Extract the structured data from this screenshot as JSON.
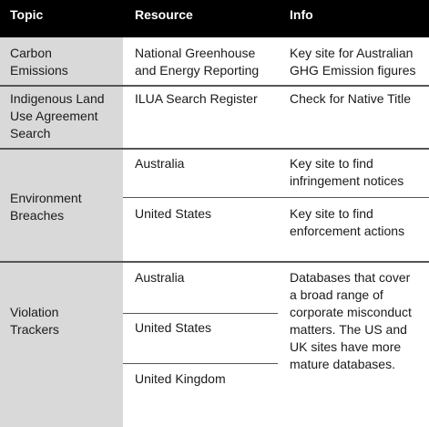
{
  "header": {
    "topic": "Topic",
    "resource": "Resource",
    "info": "Info"
  },
  "rows": {
    "carbon": {
      "topic": [
        "Carbon",
        "Emissions"
      ],
      "resource": [
        "National Greenhouse",
        "and Energy Reporting"
      ],
      "info": [
        "Key site for Australian",
        "GHG Emission figures"
      ]
    },
    "ilua": {
      "topic": [
        "Indigenous Land",
        "Use Agreement",
        "Search"
      ],
      "resource": [
        "ILUA Search Register"
      ],
      "info": [
        "Check for Native Title"
      ]
    },
    "environment": {
      "topic": [
        "Environment",
        "Breaches"
      ],
      "sub": [
        {
          "resource": "Australia",
          "info": [
            "Key site to find",
            "infringement notices"
          ]
        },
        {
          "resource": "United States",
          "info": [
            "Key site to find",
            "enforcement actions"
          ]
        }
      ]
    },
    "violation": {
      "topic": [
        "Violation",
        "Trackers"
      ],
      "resources": [
        "Australia",
        "United States",
        "United Kingdom"
      ],
      "info": [
        "Databases that cover",
        "a broad range of",
        "corporate misconduct",
        "matters. The US and",
        "UK sites have more",
        "mature databases."
      ]
    }
  }
}
